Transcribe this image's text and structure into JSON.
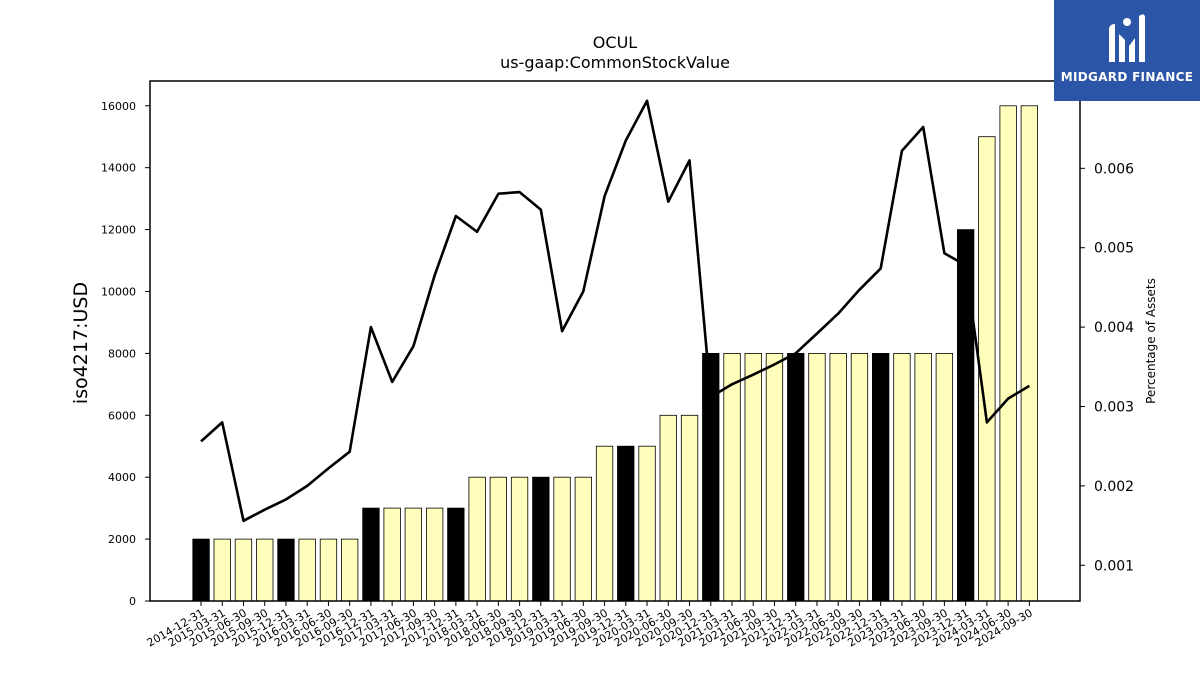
{
  "chart_data": {
    "type": "bar",
    "title": "OCUL",
    "subtitle": "us-gaap:CommonStockValue",
    "ylabel": "iso4217:USD",
    "y2label": "Percentage of Assets",
    "ylim": [
      0,
      16800
    ],
    "y2lim": [
      0.00055,
      0.0071
    ],
    "yticks": [
      "0",
      "2000",
      "4000",
      "6000",
      "8000",
      "10000",
      "12000",
      "14000",
      "16000"
    ],
    "y2ticks": [
      "0.001",
      "0.002",
      "0.003",
      "0.004",
      "0.005",
      "0.006"
    ],
    "categories": [
      "2014-12-31",
      "2015-03-31",
      "2015-06-30",
      "2015-09-30",
      "2015-12-31",
      "2016-03-31",
      "2016-06-30",
      "2016-09-30",
      "2016-12-31",
      "2017-03-31",
      "2017-06-30",
      "2017-09-30",
      "2017-12-31",
      "2018-03-31",
      "2018-06-30",
      "2018-09-30",
      "2018-12-31",
      "2019-03-31",
      "2019-06-30",
      "2019-09-30",
      "2019-12-31",
      "2020-03-31",
      "2020-06-30",
      "2020-09-30",
      "2020-12-31",
      "2021-03-31",
      "2021-06-30",
      "2021-09-30",
      "2021-12-31",
      "2022-03-31",
      "2022-06-30",
      "2022-09-30",
      "2022-12-31",
      "2023-03-31",
      "2023-06-30",
      "2023-09-30",
      "2023-12-31",
      "2024-03-31",
      "2024-06-30",
      "2024-09-30"
    ],
    "series": [
      {
        "type": "bar",
        "values": [
          2000,
          2000,
          2000,
          2000,
          2000,
          2000,
          2000,
          2000,
          3000,
          3000,
          3000,
          3000,
          3000,
          4000,
          4000,
          4000,
          4000,
          4000,
          4000,
          5000,
          5000,
          5000,
          6000,
          6000,
          8000,
          8000,
          8000,
          8000,
          8000,
          8000,
          8000,
          8000,
          8000,
          8000,
          8000,
          8000,
          12000,
          15000,
          16000,
          16000
        ],
        "highlight": [
          true,
          false,
          false,
          false,
          true,
          false,
          false,
          false,
          true,
          false,
          false,
          false,
          true,
          false,
          false,
          false,
          true,
          false,
          false,
          false,
          true,
          false,
          false,
          false,
          true,
          false,
          false,
          false,
          true,
          false,
          false,
          false,
          true,
          false,
          false,
          false,
          true,
          false,
          false,
          false
        ],
        "color": "#ffffbb",
        "highlight_color": "#000000"
      },
      {
        "type": "line",
        "axis": "right",
        "values": [
          0.00256,
          0.0028,
          0.00156,
          0.0017,
          0.00183,
          0.002,
          0.00222,
          0.00243,
          0.004,
          0.00331,
          0.00376,
          0.00465,
          0.0054,
          0.0052,
          0.00568,
          0.0057,
          0.00548,
          0.00395,
          0.00445,
          0.00565,
          0.00635,
          0.00685,
          0.00558,
          0.0061,
          0.00312,
          0.00328,
          0.0034,
          0.00353,
          0.00367,
          0.00392,
          0.00417,
          0.00447,
          0.00474,
          0.00622,
          0.00652,
          0.00493,
          0.00478,
          0.0028,
          0.0031,
          0.00326
        ],
        "color": "#000000"
      }
    ]
  },
  "logo": {
    "text": "MIDGARD FINANCE",
    "background": "#2b56a8",
    "icon": "midgard-logo-icon"
  }
}
